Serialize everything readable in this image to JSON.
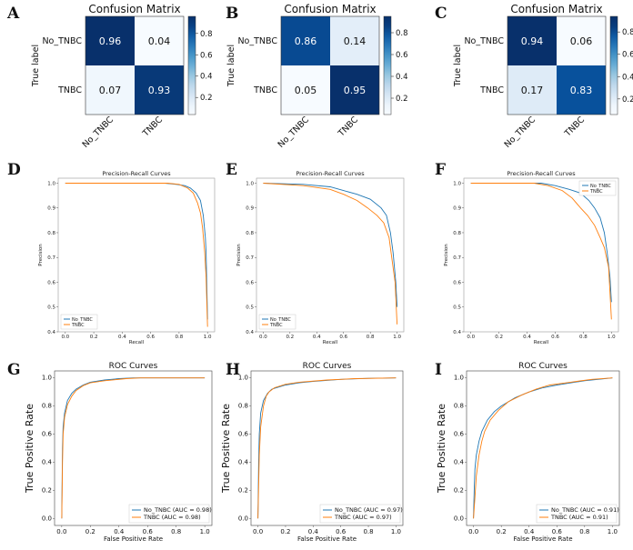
{
  "figure": {
    "panel_letters": [
      "A",
      "B",
      "C",
      "D",
      "E",
      "F",
      "G",
      "H",
      "I"
    ]
  },
  "colors": {
    "blue": "#1f77b4",
    "orange": "#ff7f0e",
    "cmap_low": "#f7fbff",
    "cmap_high": "#08306b"
  },
  "chart_data": [
    {
      "type": "heatmap",
      "panel": "A",
      "title": "Confusion Matrix",
      "ylabel": "True label",
      "xlabel": "",
      "row_labels": [
        "No_TNBC",
        "TNBC"
      ],
      "col_labels": [
        "No_TNBC",
        "TNBC"
      ],
      "values": [
        [
          0.96,
          0.04
        ],
        [
          0.07,
          0.93
        ]
      ],
      "colorbar_ticks": [
        0.2,
        0.4,
        0.6,
        0.8
      ],
      "vlim": [
        0.04,
        0.96
      ]
    },
    {
      "type": "heatmap",
      "panel": "B",
      "title": "Confusion Matrix",
      "ylabel": "True label",
      "xlabel": "",
      "row_labels": [
        "No_TNBC",
        "TNBC"
      ],
      "col_labels": [
        "No_TNBC",
        "TNBC"
      ],
      "values": [
        [
          0.86,
          0.14
        ],
        [
          0.05,
          0.95
        ]
      ],
      "colorbar_ticks": [
        0.2,
        0.4,
        0.6,
        0.8
      ],
      "vlim": [
        0.05,
        0.95
      ]
    },
    {
      "type": "heatmap",
      "panel": "C",
      "title": "Confusion Matrix",
      "ylabel": "True label",
      "xlabel": "",
      "row_labels": [
        "No_TNBC",
        "TNBC"
      ],
      "col_labels": [
        "No_TNBC",
        "TNBC"
      ],
      "values": [
        [
          0.94,
          0.06
        ],
        [
          0.17,
          0.83
        ]
      ],
      "colorbar_ticks": [
        0.2,
        0.4,
        0.6,
        0.8
      ],
      "vlim": [
        0.06,
        0.94
      ]
    },
    {
      "type": "line",
      "panel": "D",
      "title": "Precision-Recall Curves",
      "xlabel": "Recall",
      "ylabel": "Precision",
      "xlim": [
        -0.05,
        1.05
      ],
      "ylim": [
        0.4,
        1.02
      ],
      "xticks": [
        "0.0",
        "0.2",
        "0.4",
        "0.6",
        "0.8",
        "1.0"
      ],
      "yticks": [
        "0.4",
        "0.5",
        "0.6",
        "0.7",
        "0.8",
        "0.9",
        "1.0"
      ],
      "legend_loc": "lower-left",
      "series": [
        {
          "name": "No_TNBC",
          "points": [
            [
              0,
              1.0
            ],
            [
              0.7,
              1.0
            ],
            [
              0.78,
              0.995
            ],
            [
              0.84,
              0.99
            ],
            [
              0.88,
              0.98
            ],
            [
              0.92,
              0.96
            ],
            [
              0.95,
              0.93
            ],
            [
              0.97,
              0.87
            ],
            [
              0.985,
              0.78
            ],
            [
              0.99,
              0.72
            ],
            [
              1.0,
              0.45
            ]
          ]
        },
        {
          "name": "TNBC",
          "points": [
            [
              0,
              1.0
            ],
            [
              0.72,
              1.0
            ],
            [
              0.8,
              0.995
            ],
            [
              0.86,
              0.98
            ],
            [
              0.9,
              0.96
            ],
            [
              0.93,
              0.92
            ],
            [
              0.95,
              0.88
            ],
            [
              0.965,
              0.82
            ],
            [
              0.98,
              0.72
            ],
            [
              0.99,
              0.62
            ],
            [
              1.0,
              0.42
            ]
          ]
        }
      ]
    },
    {
      "type": "line",
      "panel": "E",
      "title": "Precision-Recall Curves",
      "xlabel": "Recall",
      "ylabel": "Precision",
      "xlim": [
        -0.05,
        1.05
      ],
      "ylim": [
        0.4,
        1.02
      ],
      "xticks": [
        "0.0",
        "0.2",
        "0.4",
        "0.6",
        "0.8",
        "1.0"
      ],
      "yticks": [
        "0.4",
        "0.5",
        "0.6",
        "0.7",
        "0.8",
        "0.9",
        "1.0"
      ],
      "legend_loc": "lower-left",
      "series": [
        {
          "name": "No_TNBC",
          "points": [
            [
              0,
              1.0
            ],
            [
              0.3,
              0.995
            ],
            [
              0.5,
              0.985
            ],
            [
              0.6,
              0.97
            ],
            [
              0.7,
              0.955
            ],
            [
              0.8,
              0.935
            ],
            [
              0.88,
              0.9
            ],
            [
              0.92,
              0.87
            ],
            [
              0.95,
              0.8
            ],
            [
              0.97,
              0.72
            ],
            [
              0.99,
              0.6
            ],
            [
              1.0,
              0.5
            ]
          ]
        },
        {
          "name": "TNBC",
          "points": [
            [
              0,
              1.0
            ],
            [
              0.3,
              0.99
            ],
            [
              0.5,
              0.975
            ],
            [
              0.6,
              0.955
            ],
            [
              0.7,
              0.93
            ],
            [
              0.78,
              0.9
            ],
            [
              0.85,
              0.87
            ],
            [
              0.9,
              0.84
            ],
            [
              0.94,
              0.78
            ],
            [
              0.96,
              0.7
            ],
            [
              0.985,
              0.6
            ],
            [
              1.0,
              0.43
            ]
          ]
        }
      ]
    },
    {
      "type": "line",
      "panel": "F",
      "title": "Precision-Recall Curves",
      "xlabel": "Recall",
      "ylabel": "Precision",
      "xlim": [
        -0.05,
        1.05
      ],
      "ylim": [
        0.4,
        1.02
      ],
      "xticks": [
        "0.0",
        "0.2",
        "0.4",
        "0.6",
        "0.8",
        "1.0"
      ],
      "yticks": [
        "0.4",
        "0.5",
        "0.6",
        "0.7",
        "0.8",
        "0.9",
        "1.0"
      ],
      "legend_loc": "upper-right",
      "series": [
        {
          "name": "No_TNBC",
          "points": [
            [
              0,
              1.0
            ],
            [
              0.5,
              1.0
            ],
            [
              0.6,
              0.99
            ],
            [
              0.7,
              0.975
            ],
            [
              0.78,
              0.96
            ],
            [
              0.84,
              0.93
            ],
            [
              0.88,
              0.9
            ],
            [
              0.92,
              0.86
            ],
            [
              0.95,
              0.8
            ],
            [
              0.97,
              0.72
            ],
            [
              0.99,
              0.62
            ],
            [
              1.0,
              0.52
            ]
          ]
        },
        {
          "name": "TNBC",
          "points": [
            [
              0,
              1.0
            ],
            [
              0.45,
              1.0
            ],
            [
              0.55,
              0.99
            ],
            [
              0.65,
              0.97
            ],
            [
              0.72,
              0.94
            ],
            [
              0.78,
              0.9
            ],
            [
              0.83,
              0.87
            ],
            [
              0.88,
              0.83
            ],
            [
              0.92,
              0.78
            ],
            [
              0.95,
              0.74
            ],
            [
              0.98,
              0.66
            ],
            [
              1.0,
              0.45
            ]
          ]
        }
      ]
    },
    {
      "type": "line",
      "panel": "G",
      "title": "ROC Curves",
      "xlabel": "False Positive Rate",
      "ylabel": "True Positive Rate",
      "xlim": [
        -0.05,
        1.05
      ],
      "ylim": [
        -0.05,
        1.05
      ],
      "xticks": [
        "0.0",
        "0.2",
        "0.4",
        "0.6",
        "0.8",
        "1.0"
      ],
      "yticks": [
        "0.0",
        "0.2",
        "0.4",
        "0.6",
        "0.8",
        "1.0"
      ],
      "legend_loc": "lower-right",
      "series": [
        {
          "name": "No_TNBC (AUC = 0.98)",
          "points": [
            [
              0,
              0
            ],
            [
              0.005,
              0.5
            ],
            [
              0.01,
              0.65
            ],
            [
              0.02,
              0.75
            ],
            [
              0.04,
              0.84
            ],
            [
              0.07,
              0.89
            ],
            [
              0.1,
              0.92
            ],
            [
              0.15,
              0.95
            ],
            [
              0.2,
              0.97
            ],
            [
              0.3,
              0.985
            ],
            [
              0.4,
              0.995
            ],
            [
              0.5,
              1.0
            ],
            [
              1.0,
              1.0
            ]
          ]
        },
        {
          "name": "TNBC (AUC = 0.98)",
          "points": [
            [
              0,
              0
            ],
            [
              0.005,
              0.4
            ],
            [
              0.01,
              0.6
            ],
            [
              0.02,
              0.72
            ],
            [
              0.04,
              0.81
            ],
            [
              0.07,
              0.87
            ],
            [
              0.1,
              0.91
            ],
            [
              0.15,
              0.945
            ],
            [
              0.2,
              0.965
            ],
            [
              0.3,
              0.98
            ],
            [
              0.45,
              0.995
            ],
            [
              0.55,
              1.0
            ],
            [
              1.0,
              1.0
            ]
          ]
        }
      ]
    },
    {
      "type": "line",
      "panel": "H",
      "title": "ROC Curves",
      "xlabel": "False Positive Rate",
      "ylabel": "True Positive Rate",
      "xlim": [
        -0.05,
        1.05
      ],
      "ylim": [
        -0.05,
        1.05
      ],
      "xticks": [
        "0.0",
        "0.2",
        "0.4",
        "0.6",
        "0.8",
        "1.0"
      ],
      "yticks": [
        "0.0",
        "0.2",
        "0.4",
        "0.6",
        "0.8",
        "1.0"
      ],
      "legend_loc": "lower-right",
      "series": [
        {
          "name": "No_TNBC (AUC = 0.97)",
          "points": [
            [
              0,
              0
            ],
            [
              0.005,
              0.4
            ],
            [
              0.01,
              0.6
            ],
            [
              0.02,
              0.75
            ],
            [
              0.04,
              0.84
            ],
            [
              0.07,
              0.89
            ],
            [
              0.1,
              0.92
            ],
            [
              0.2,
              0.95
            ],
            [
              0.3,
              0.965
            ],
            [
              0.4,
              0.975
            ],
            [
              0.6,
              0.99
            ],
            [
              0.8,
              0.997
            ],
            [
              1.0,
              1.0
            ]
          ]
        },
        {
          "name": "TNBC (AUC = 0.97)",
          "points": [
            [
              0,
              0
            ],
            [
              0.01,
              0.45
            ],
            [
              0.02,
              0.65
            ],
            [
              0.04,
              0.8
            ],
            [
              0.06,
              0.87
            ],
            [
              0.08,
              0.9
            ],
            [
              0.12,
              0.93
            ],
            [
              0.2,
              0.955
            ],
            [
              0.3,
              0.97
            ],
            [
              0.5,
              0.985
            ],
            [
              0.7,
              0.995
            ],
            [
              1.0,
              1.0
            ]
          ]
        }
      ]
    },
    {
      "type": "line",
      "panel": "I",
      "title": "ROC Curves",
      "xlabel": "False Positive Rate",
      "ylabel": "True Positive Rate",
      "xlim": [
        -0.05,
        1.05
      ],
      "ylim": [
        -0.05,
        1.05
      ],
      "xticks": [
        "0.0",
        "0.2",
        "0.4",
        "0.6",
        "0.8",
        "1.0"
      ],
      "yticks": [
        "0.0",
        "0.2",
        "0.4",
        "0.6",
        "0.8",
        "1.0"
      ],
      "legend_loc": "lower-right",
      "series": [
        {
          "name": "No_TNBC (AUC = 0.91)",
          "points": [
            [
              0,
              0
            ],
            [
              0.005,
              0.2
            ],
            [
              0.01,
              0.35
            ],
            [
              0.02,
              0.45
            ],
            [
              0.04,
              0.55
            ],
            [
              0.06,
              0.62
            ],
            [
              0.1,
              0.7
            ],
            [
              0.15,
              0.76
            ],
            [
              0.2,
              0.8
            ],
            [
              0.3,
              0.86
            ],
            [
              0.4,
              0.9
            ],
            [
              0.5,
              0.93
            ],
            [
              0.6,
              0.95
            ],
            [
              0.8,
              0.98
            ],
            [
              1.0,
              1.0
            ]
          ]
        },
        {
          "name": "TNBC (AUC = 0.91)",
          "points": [
            [
              0,
              0
            ],
            [
              0.01,
              0.15
            ],
            [
              0.02,
              0.3
            ],
            [
              0.04,
              0.45
            ],
            [
              0.06,
              0.55
            ],
            [
              0.08,
              0.62
            ],
            [
              0.12,
              0.7
            ],
            [
              0.18,
              0.77
            ],
            [
              0.25,
              0.83
            ],
            [
              0.35,
              0.88
            ],
            [
              0.45,
              0.92
            ],
            [
              0.55,
              0.95
            ],
            [
              0.7,
              0.97
            ],
            [
              0.85,
              0.99
            ],
            [
              1.0,
              1.0
            ]
          ]
        }
      ]
    }
  ]
}
